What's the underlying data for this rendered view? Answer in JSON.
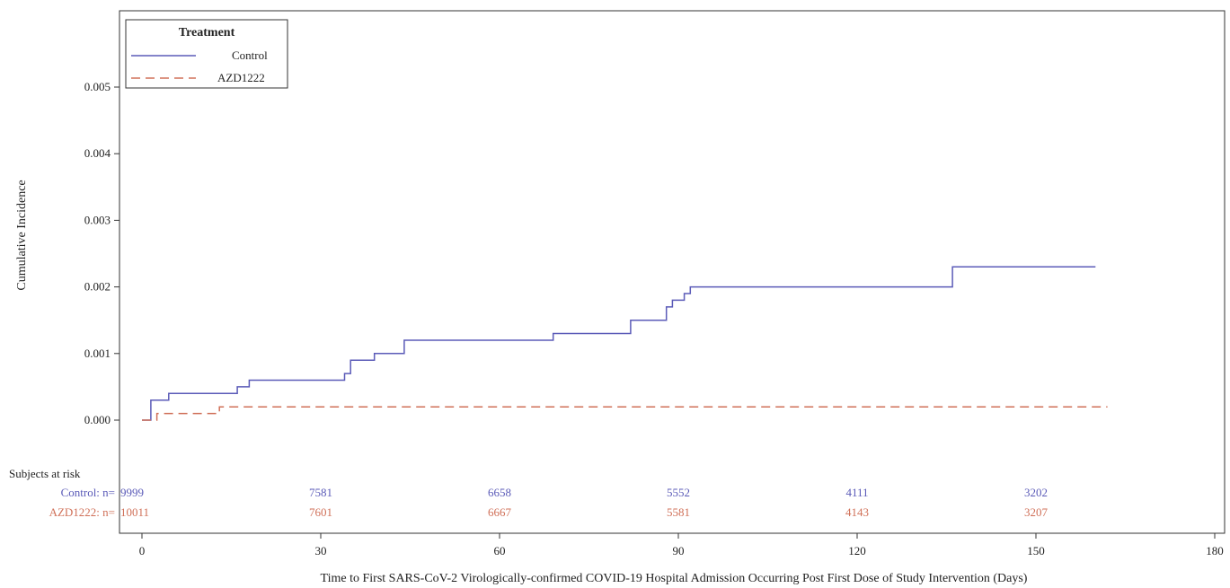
{
  "chart_data": {
    "type": "line",
    "step": true,
    "xlabel": "Time to First SARS-CoV-2 Virologically-confirmed COVID-19 Hospital Admission Occurring Post First Dose of Study Intervention (Days)",
    "ylabel": "Cumulative Incidence",
    "xlim": [
      -2,
      180
    ],
    "ylim": [
      -0.0005,
      0.0061
    ],
    "x_ticks": [
      "0",
      "30",
      "60",
      "90",
      "120",
      "150",
      "180"
    ],
    "x_tick_values": [
      0,
      30,
      60,
      90,
      120,
      150,
      180
    ],
    "y_ticks": [
      "0.000",
      "0.001",
      "0.002",
      "0.003",
      "0.004",
      "0.005"
    ],
    "y_tick_values": [
      0,
      0.001,
      0.002,
      0.003,
      0.004,
      0.005
    ],
    "grid": false,
    "legend": {
      "title": "Treatment",
      "position": "top-left",
      "entries": [
        "Control",
        "AZD1222"
      ]
    },
    "series": [
      {
        "name": "Control",
        "color": "#5b5bb8",
        "dash": "solid",
        "points": [
          [
            0,
            0
          ],
          [
            1.5,
            0
          ],
          [
            1.5,
            0.0003
          ],
          [
            4.5,
            0.0003
          ],
          [
            4.5,
            0.0004
          ],
          [
            16,
            0.0004
          ],
          [
            16,
            0.0005
          ],
          [
            18,
            0.0005
          ],
          [
            18,
            0.0006
          ],
          [
            34,
            0.0006
          ],
          [
            34,
            0.0007
          ],
          [
            35,
            0.0007
          ],
          [
            35,
            0.0009
          ],
          [
            39,
            0.0009
          ],
          [
            39,
            0.001
          ],
          [
            44,
            0.001
          ],
          [
            44,
            0.0012
          ],
          [
            69,
            0.0012
          ],
          [
            69,
            0.0013
          ],
          [
            82,
            0.0013
          ],
          [
            82,
            0.0015
          ],
          [
            88,
            0.0015
          ],
          [
            88,
            0.0017
          ],
          [
            89,
            0.0017
          ],
          [
            89,
            0.0018
          ],
          [
            91,
            0.0018
          ],
          [
            91,
            0.0019
          ],
          [
            92,
            0.0019
          ],
          [
            92,
            0.002
          ],
          [
            136,
            0.002
          ],
          [
            136,
            0.0023
          ],
          [
            160,
            0.0023
          ]
        ]
      },
      {
        "name": "AZD1222",
        "color": "#d07058",
        "dash": "dashed",
        "points": [
          [
            0,
            0
          ],
          [
            2.5,
            0
          ],
          [
            2.5,
            0.0001
          ],
          [
            13,
            0.0001
          ],
          [
            13,
            0.0002
          ],
          [
            162,
            0.0002
          ]
        ]
      }
    ],
    "risk_table": {
      "title": "Subjects at risk",
      "times": [
        0,
        30,
        60,
        90,
        120,
        150
      ],
      "rows": [
        {
          "label": "Control: n=",
          "color": "#5b5bb8",
          "values": [
            "9999",
            "7581",
            "6658",
            "5552",
            "4111",
            "3202"
          ]
        },
        {
          "label": "AZD1222: n=",
          "color": "#d07058",
          "values": [
            "10011",
            "7601",
            "6667",
            "5581",
            "4143",
            "3207"
          ]
        }
      ]
    }
  }
}
